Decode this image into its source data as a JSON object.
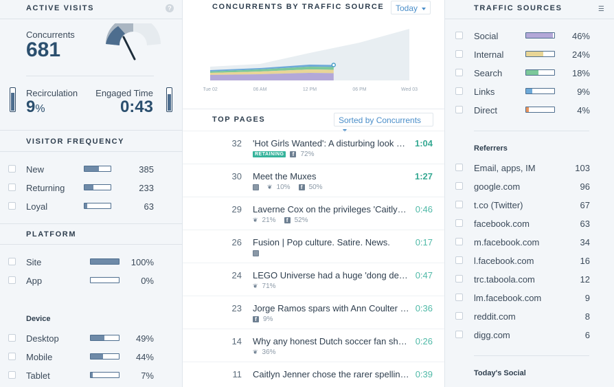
{
  "active_visits": {
    "title": "Active Visits",
    "help": "?",
    "concurrents_label": "Concurrents",
    "concurrents_value": "681",
    "recirculation_label": "Recirculation",
    "recirculation_value": "9",
    "recirculation_unit": "%",
    "recirculation_level": 0.09,
    "engaged_label": "Engaged Time",
    "engaged_value": "0:43",
    "engaged_level": 0.72
  },
  "visitor_frequency": {
    "title": "Visitor Frequency",
    "items": [
      {
        "label": "New",
        "value": "385",
        "level": 0.55
      },
      {
        "label": "Returning",
        "value": "233",
        "level": 0.35
      },
      {
        "label": "Loyal",
        "value": "63",
        "level": 0.1
      }
    ]
  },
  "platform": {
    "title": "Platform",
    "items": [
      {
        "label": "Site",
        "value": "100%",
        "level": 1.0
      },
      {
        "label": "App",
        "value": "0%",
        "level": 0.0
      }
    ]
  },
  "device": {
    "title": "Device",
    "items": [
      {
        "label": "Desktop",
        "value": "49%",
        "level": 0.49
      },
      {
        "label": "Mobile",
        "value": "44%",
        "level": 0.44
      },
      {
        "label": "Tablet",
        "value": "7%",
        "level": 0.07
      }
    ]
  },
  "concurrents_chart": {
    "title": "Concurrents by Traffic Source",
    "range_label": "Today",
    "x_ticks": [
      "Tue 02",
      "06 AM",
      "12 PM",
      "06 PM",
      "Wed 03"
    ]
  },
  "chart_data": {
    "type": "area",
    "title": "Concurrents by Traffic Source",
    "x": [
      "Tue 02",
      "06 AM",
      "12 PM",
      "06 PM",
      "Wed 03"
    ],
    "series": [
      {
        "name": "Social",
        "color": "#b3a8d8",
        "values": [
          8,
          9,
          11,
          10,
          10
        ]
      },
      {
        "name": "Internal",
        "color": "#e8d596",
        "values": [
          3,
          4,
          5,
          5,
          5
        ]
      },
      {
        "name": "Search",
        "color": "#7cc89a",
        "values": [
          2,
          3,
          4,
          4,
          4
        ]
      },
      {
        "name": "Links",
        "color": "#6da9d8",
        "values": [
          2,
          2,
          3,
          3,
          3
        ]
      }
    ],
    "total_projection": [
      20,
      24,
      40,
      55,
      75
    ],
    "projection_color": "#e8eef2"
  },
  "top_pages": {
    "title": "Top Pages",
    "sort_label": "Sorted by Concurrents",
    "rows": [
      {
        "num": "32",
        "title": "'Hot Girls Wanted': A disturbing look at the amateur porn industry",
        "time": "1:04",
        "bold": true,
        "retaining": "RETAINING",
        "fb": "72%",
        "tw": "",
        "link": false
      },
      {
        "num": "30",
        "title": "Meet the Muxes",
        "time": "1:27",
        "bold": true,
        "retaining": "",
        "fb": "50%",
        "tw": "10%",
        "link": true
      },
      {
        "num": "29",
        "title": "Laverne Cox on the privileges 'Caitlyn as a woman will have'",
        "time": "0:46",
        "bold": false,
        "retaining": "",
        "fb": "52%",
        "tw": "21%",
        "link": false
      },
      {
        "num": "26",
        "title": "Fusion | Pop culture. Satire. News.",
        "time": "0:17",
        "bold": false,
        "retaining": "",
        "fb": "",
        "tw": "",
        "link": true
      },
      {
        "num": "24",
        "title": "LEGO Universe had a huge 'dong detection' problem",
        "time": "0:47",
        "bold": false,
        "retaining": "",
        "fb": "",
        "tw": "71%",
        "link": false
      },
      {
        "num": "23",
        "title": "Jorge Ramos spars with Ann Coulter over immigration",
        "time": "0:36",
        "bold": false,
        "retaining": "",
        "fb": "9%",
        "tw": "",
        "link": false
      },
      {
        "num": "14",
        "title": "Why any honest Dutch soccer fan should be ashamed",
        "time": "0:26",
        "bold": false,
        "retaining": "",
        "fb": "",
        "tw": "36%",
        "link": false
      },
      {
        "num": "11",
        "title": "Caitlyn Jenner chose the rarer spelling of her name",
        "time": "0:39",
        "bold": false,
        "retaining": "",
        "fb": "",
        "tw": "",
        "link": false
      }
    ]
  },
  "traffic_sources": {
    "title": "Traffic Sources",
    "items": [
      {
        "label": "Social",
        "value": "46%",
        "level": 0.96,
        "color": "#b3a8d8"
      },
      {
        "label": "Internal",
        "value": "24%",
        "level": 0.6,
        "color": "#e8d596"
      },
      {
        "label": "Search",
        "value": "18%",
        "level": 0.45,
        "color": "#7cc89a"
      },
      {
        "label": "Links",
        "value": "9%",
        "level": 0.22,
        "color": "#6da9d8"
      },
      {
        "label": "Direct",
        "value": "4%",
        "level": 0.1,
        "color": "#e8945c"
      }
    ]
  },
  "referrers": {
    "title": "Referrers",
    "items": [
      {
        "label": "Email, apps, IM",
        "value": "103"
      },
      {
        "label": "google.com",
        "value": "96"
      },
      {
        "label": "t.co (Twitter)",
        "value": "67"
      },
      {
        "label": "facebook.com",
        "value": "63"
      },
      {
        "label": "m.facebook.com",
        "value": "34"
      },
      {
        "label": "l.facebook.com",
        "value": "16"
      },
      {
        "label": "trc.taboola.com",
        "value": "12"
      },
      {
        "label": "lm.facebook.com",
        "value": "9"
      },
      {
        "label": "reddit.com",
        "value": "8"
      },
      {
        "label": "digg.com",
        "value": "6"
      }
    ]
  },
  "todays_social": {
    "title": "Today's Social"
  }
}
